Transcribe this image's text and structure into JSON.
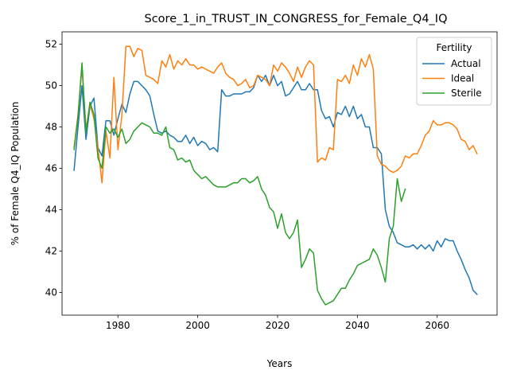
{
  "chart_data": {
    "type": "line",
    "title": "Score_1_in_TRUST_IN_CONGRESS_for_Female_Q4_IQ",
    "xlabel": "Years",
    "ylabel": "% of Female Q4_IQ Population",
    "xlim": [
      1966,
      2075
    ],
    "ylim": [
      38.9,
      52.6
    ],
    "xticks": [
      1980,
      2000,
      2020,
      2040,
      2060
    ],
    "yticks": [
      40,
      42,
      44,
      46,
      48,
      50,
      52
    ],
    "grid": false,
    "legend": {
      "title": "Fertility",
      "placement": "upper right"
    },
    "series": [
      {
        "name": "Actual",
        "color": "#1f77b4",
        "x": [
          1969,
          1970,
          1971,
          1972,
          1973,
          1974,
          1975,
          1976,
          1977,
          1978,
          1979,
          1980,
          1981,
          1982,
          1983,
          1984,
          1985,
          1986,
          1987,
          1988,
          1989,
          1990,
          1991,
          1992,
          1993,
          1994,
          1995,
          1996,
          1997,
          1998,
          1999,
          2000,
          2001,
          2002,
          2003,
          2004,
          2005,
          2006,
          2007,
          2008,
          2009,
          2010,
          2011,
          2012,
          2013,
          2014,
          2015,
          2016,
          2017,
          2018,
          2019,
          2020,
          2021,
          2022,
          2023,
          2024,
          2025,
          2026,
          2027,
          2028,
          2029,
          2030,
          2031,
          2032,
          2033,
          2034,
          2035,
          2036,
          2037,
          2038,
          2039,
          2040,
          2041,
          2042,
          2043,
          2044,
          2045,
          2046,
          2047,
          2048,
          2049,
          2050,
          2051,
          2052,
          2053,
          2054,
          2055,
          2056,
          2057,
          2058,
          2059,
          2060,
          2061,
          2062,
          2063,
          2064,
          2065,
          2066,
          2067,
          2068,
          2069,
          2070
        ],
        "values": [
          45.9,
          48.0,
          50.0,
          47.4,
          49.0,
          49.4,
          47.0,
          46.6,
          48.3,
          48.3,
          47.6,
          48.4,
          49.1,
          48.7,
          49.6,
          50.2,
          50.2,
          50.0,
          49.8,
          49.5,
          48.6,
          47.8,
          47.7,
          47.8,
          47.6,
          47.5,
          47.3,
          47.3,
          47.6,
          47.2,
          47.5,
          47.1,
          47.3,
          47.2,
          46.9,
          47.0,
          46.8,
          49.8,
          49.5,
          49.5,
          49.6,
          49.6,
          49.6,
          49.7,
          49.7,
          49.9,
          50.5,
          50.2,
          50.5,
          50.0,
          50.5,
          50.0,
          50.2,
          49.5,
          49.6,
          49.9,
          50.2,
          49.8,
          49.8,
          50.1,
          49.8,
          49.8,
          48.8,
          48.4,
          48.5,
          48.0,
          48.7,
          48.6,
          49.0,
          48.5,
          49.0,
          48.4,
          48.6,
          48.0,
          48.0,
          47.0,
          47.0,
          46.7,
          44.0,
          43.2,
          42.9,
          42.4,
          42.3,
          42.2,
          42.2,
          42.3,
          42.1,
          42.3,
          42.1,
          42.3,
          42.0,
          42.5,
          42.2,
          42.6,
          42.5,
          42.5,
          42.0,
          41.6,
          41.1,
          40.7,
          40.1,
          39.9
        ]
      },
      {
        "name": "Ideal",
        "color": "#ff7f0e",
        "x": [
          1969,
          1970,
          1971,
          1972,
          1973,
          1974,
          1975,
          1976,
          1977,
          1978,
          1979,
          1980,
          1981,
          1982,
          1983,
          1984,
          1985,
          1986,
          1987,
          1988,
          1989,
          1990,
          1991,
          1992,
          1993,
          1994,
          1995,
          1996,
          1997,
          1998,
          1999,
          2000,
          2001,
          2002,
          2003,
          2004,
          2005,
          2006,
          2007,
          2008,
          2009,
          2010,
          2011,
          2012,
          2013,
          2014,
          2015,
          2016,
          2017,
          2018,
          2019,
          2020,
          2021,
          2022,
          2023,
          2024,
          2025,
          2026,
          2027,
          2028,
          2029,
          2030,
          2031,
          2032,
          2033,
          2034,
          2035,
          2036,
          2037,
          2038,
          2039,
          2040,
          2041,
          2042,
          2043,
          2044,
          2045,
          2046,
          2047,
          2048,
          2049,
          2050,
          2051,
          2052,
          2053,
          2054,
          2055,
          2056,
          2057,
          2058,
          2059,
          2060,
          2061,
          2062,
          2063,
          2064,
          2065,
          2066,
          2067,
          2068,
          2069,
          2070
        ],
        "values": [
          47.0,
          48.6,
          50.9,
          47.9,
          49.1,
          48.4,
          47.0,
          45.3,
          47.8,
          46.5,
          50.4,
          46.9,
          48.6,
          51.9,
          51.9,
          51.4,
          51.8,
          51.7,
          50.5,
          50.4,
          50.3,
          50.1,
          51.2,
          50.9,
          51.5,
          50.8,
          51.2,
          51.0,
          51.3,
          51.0,
          51.0,
          50.8,
          50.9,
          50.8,
          50.7,
          50.6,
          50.9,
          51.1,
          50.6,
          50.4,
          50.3,
          50.0,
          50.1,
          50.3,
          49.9,
          50.0,
          50.5,
          50.4,
          50.3,
          50.0,
          51.0,
          50.7,
          51.1,
          50.9,
          50.6,
          50.2,
          50.9,
          50.4,
          50.9,
          51.2,
          51.0,
          46.3,
          46.5,
          46.4,
          47.0,
          46.9,
          50.3,
          50.2,
          50.5,
          50.1,
          51.0,
          50.5,
          51.3,
          50.9,
          51.5,
          50.8,
          46.6,
          46.2,
          46.1,
          45.9,
          45.8,
          45.9,
          46.1,
          46.6,
          46.5,
          46.7,
          46.7,
          47.1,
          47.6,
          47.8,
          48.3,
          48.1,
          48.1,
          48.2,
          48.2,
          48.1,
          47.9,
          47.4,
          47.3,
          46.9,
          47.1,
          46.7
        ]
      },
      {
        "name": "Sterile",
        "color": "#2ca02c",
        "x": [
          1969,
          1970,
          1971,
          1972,
          1973,
          1974,
          1975,
          1976,
          1977,
          1978,
          1979,
          1980,
          1981,
          1982,
          1983,
          1984,
          1985,
          1986,
          1987,
          1988,
          1989,
          1990,
          1991,
          1992,
          1993,
          1994,
          1995,
          1996,
          1997,
          1998,
          1999,
          2000,
          2001,
          2002,
          2003,
          2004,
          2005,
          2006,
          2007,
          2008,
          2009,
          2010,
          2011,
          2012,
          2013,
          2014,
          2015,
          2016,
          2017,
          2018,
          2019,
          2020,
          2021,
          2022,
          2023,
          2024,
          2025,
          2026,
          2027,
          2028,
          2029,
          2030,
          2031,
          2032,
          2033,
          2034,
          2035,
          2036,
          2037,
          2038,
          2039,
          2040,
          2041,
          2042,
          2043,
          2044,
          2045,
          2046,
          2047,
          2048,
          2049,
          2050,
          2051,
          2052
        ],
        "values": [
          46.9,
          48.5,
          51.1,
          47.7,
          49.2,
          48.6,
          46.5,
          46.0,
          48.0,
          47.7,
          47.9,
          47.5,
          47.9,
          47.2,
          47.4,
          47.8,
          48.0,
          48.2,
          48.1,
          48.0,
          47.7,
          47.7,
          47.6,
          48.0,
          47.0,
          46.9,
          46.4,
          46.5,
          46.3,
          46.4,
          45.9,
          45.7,
          45.5,
          45.6,
          45.4,
          45.2,
          45.1,
          45.1,
          45.1,
          45.2,
          45.3,
          45.3,
          45.5,
          45.5,
          45.3,
          45.4,
          45.6,
          45.0,
          44.7,
          44.1,
          43.9,
          43.1,
          43.8,
          42.9,
          42.6,
          42.9,
          43.5,
          41.2,
          41.6,
          42.1,
          41.9,
          40.1,
          39.7,
          39.4,
          39.5,
          39.6,
          39.9,
          40.2,
          40.2,
          40.6,
          40.9,
          41.3,
          41.4,
          41.5,
          41.6,
          42.1,
          41.8,
          41.2,
          40.5,
          42.6,
          43.2,
          45.5,
          44.4,
          45.0
        ]
      }
    ]
  }
}
